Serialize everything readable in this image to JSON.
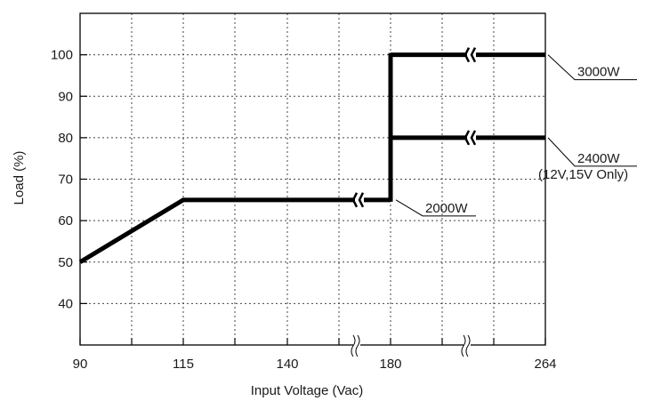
{
  "chart_data": {
    "type": "line",
    "title": "",
    "xlabel": "Input Voltage (Vac)",
    "ylabel": "Load (%)",
    "x_tick_labels": [
      "90",
      "115",
      "140",
      "180",
      "264"
    ],
    "y_ticks": [
      40,
      50,
      60,
      70,
      80,
      90,
      100
    ],
    "ylim": [
      30,
      110
    ],
    "grid": true,
    "series": [
      {
        "name": "2000W",
        "points": [
          [
            "90",
            50
          ],
          [
            "115",
            65
          ],
          [
            "180",
            65
          ]
        ]
      },
      {
        "name": "2400W",
        "name_line2": "(12V,15V Only)",
        "points": [
          [
            "180",
            80
          ],
          [
            "264",
            80
          ]
        ]
      },
      {
        "name": "3000W",
        "points": [
          [
            "180",
            100
          ],
          [
            "264",
            100
          ]
        ]
      }
    ]
  }
}
